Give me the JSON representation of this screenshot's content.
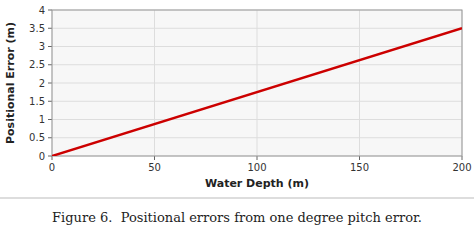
{
  "chart_data": {
    "type": "line",
    "title": "Figure 6.  Positional errors from one degree pitch error.",
    "x_label": "Water Depth (m)",
    "y_label": "Positional Error (m)",
    "x": [
      0,
      200
    ],
    "values": [
      0,
      3.5
    ],
    "color": "#cc0000",
    "xlim": [
      0,
      200
    ],
    "ylim": [
      0,
      4
    ],
    "xticks": [
      0,
      50,
      100,
      150,
      200
    ],
    "yticks": [
      0,
      0.5,
      1,
      1.5,
      2,
      2.5,
      3,
      3.5,
      4
    ],
    "grid": true
  }
}
